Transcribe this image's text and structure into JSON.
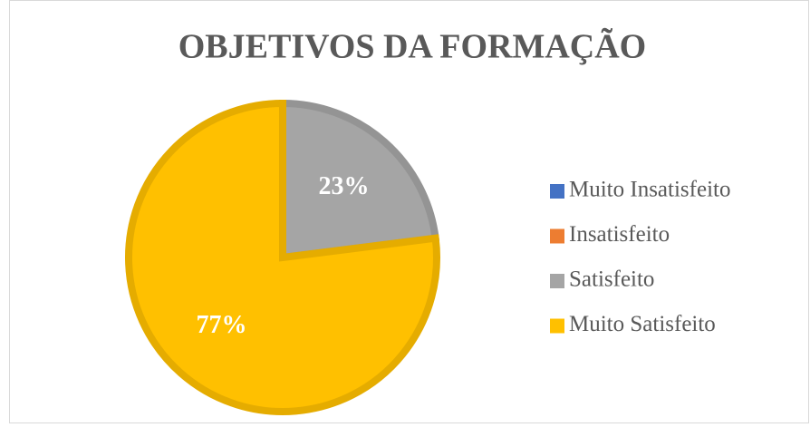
{
  "chart_data": {
    "type": "pie",
    "title": "OBJETIVOS DA FORMAÇÃO",
    "categories": [
      "Muito Insatisfeito",
      "Insatisfeito",
      "Satisfeito",
      "Muito Satisfeito"
    ],
    "values": [
      0,
      0,
      23,
      77
    ],
    "value_labels": [
      null,
      null,
      "23%",
      "77%"
    ],
    "colors": [
      "#4472c4",
      "#ed7d31",
      "#a5a5a5",
      "#ffc000"
    ],
    "legend": "right"
  }
}
